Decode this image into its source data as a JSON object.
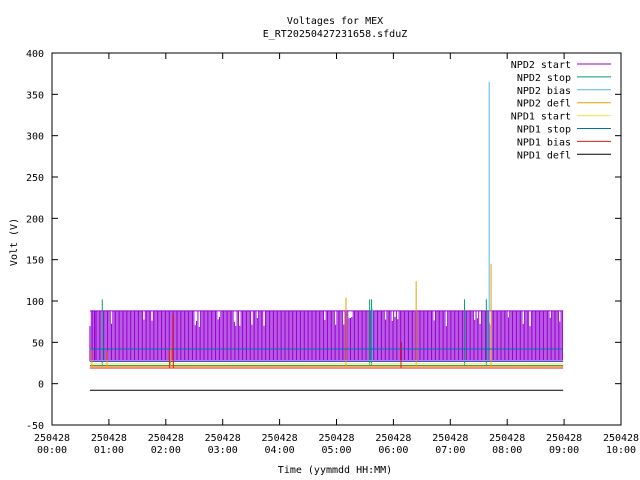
{
  "chart_data": {
    "type": "line",
    "title": "Voltages for MEX",
    "subtitle": "E_RT20250427231658.sfduZ",
    "xlabel": "Time (yymmdd HH:MM)",
    "ylabel": "Volt (V)",
    "xlim": [
      "2025-04-28 00:00",
      "2025-04-28 10:00"
    ],
    "ylim": [
      -50,
      400
    ],
    "y_ticks": [
      "-50",
      "0",
      "50",
      "100",
      "150",
      "200",
      "250",
      "300",
      "350",
      "400"
    ],
    "x_ticks": [
      {
        "date": "250428",
        "time": "00:00"
      },
      {
        "date": "250428",
        "time": "01:00"
      },
      {
        "date": "250428",
        "time": "02:00"
      },
      {
        "date": "250428",
        "time": "03:00"
      },
      {
        "date": "250428",
        "time": "04:00"
      },
      {
        "date": "250428",
        "time": "05:00"
      },
      {
        "date": "250428",
        "time": "06:00"
      },
      {
        "date": "250428",
        "time": "07:00"
      },
      {
        "date": "250428",
        "time": "08:00"
      },
      {
        "date": "250428",
        "time": "09:00"
      },
      {
        "date": "250428",
        "time": "10:00"
      }
    ],
    "grid": false,
    "legend_position": "top-right",
    "data_span": [
      "2025-04-28 00:40",
      "2025-04-28 08:59"
    ],
    "series": [
      {
        "name": "NPD2 start",
        "color": "#9400d3",
        "baseline": 27,
        "upper": 88,
        "spikes": [
          {
            "x": "2025-04-28 00:45",
            "y": 88
          }
        ]
      },
      {
        "name": "NPD2 stop",
        "color": "#009e73",
        "baseline": 22,
        "spikes": [
          {
            "x": "2025-04-28 00:53",
            "y": 102
          },
          {
            "x": "2025-04-28 05:35",
            "y": 102
          },
          {
            "x": "2025-04-28 05:37",
            "y": 102
          },
          {
            "x": "2025-04-28 07:15",
            "y": 102
          },
          {
            "x": "2025-04-28 07:38",
            "y": 102
          }
        ]
      },
      {
        "name": "NPD2 bias",
        "color": "#56b4e9",
        "baseline": 28,
        "spikes": [
          {
            "x": "2025-04-28 07:41",
            "y": 365
          },
          {
            "x": "2025-04-28 05:38",
            "y": 90
          }
        ]
      },
      {
        "name": "NPD2 defl",
        "color": "#e69f00",
        "baseline": 21,
        "spikes": [
          {
            "x": "2025-04-28 07:43",
            "y": 145
          },
          {
            "x": "2025-04-28 06:24",
            "y": 124
          },
          {
            "x": "2025-04-28 05:10",
            "y": 104
          },
          {
            "x": "2025-04-28 00:42",
            "y": 42
          },
          {
            "x": "2025-04-28 00:58",
            "y": 40
          },
          {
            "x": "2025-04-28 02:05",
            "y": 44
          }
        ]
      },
      {
        "name": "NPD1 start",
        "color": "#f0e442",
        "baseline": 24,
        "spikes": []
      },
      {
        "name": "NPD1 stop",
        "color": "#0072b2",
        "baseline": 42,
        "spikes": [
          {
            "x": "2025-04-28 00:43",
            "y": 42
          },
          {
            "x": "2025-04-28 08:58",
            "y": 42
          }
        ]
      },
      {
        "name": "NPD1 bias",
        "color": "#e51e10",
        "baseline": 19,
        "spikes": [
          {
            "x": "2025-04-28 02:08",
            "y": 84
          },
          {
            "x": "2025-04-28 06:08",
            "y": 50
          },
          {
            "x": "2025-04-28 02:04",
            "y": 40
          }
        ]
      },
      {
        "name": "NPD1 defl",
        "color": "#000000",
        "baseline": -8,
        "spikes": []
      }
    ]
  }
}
